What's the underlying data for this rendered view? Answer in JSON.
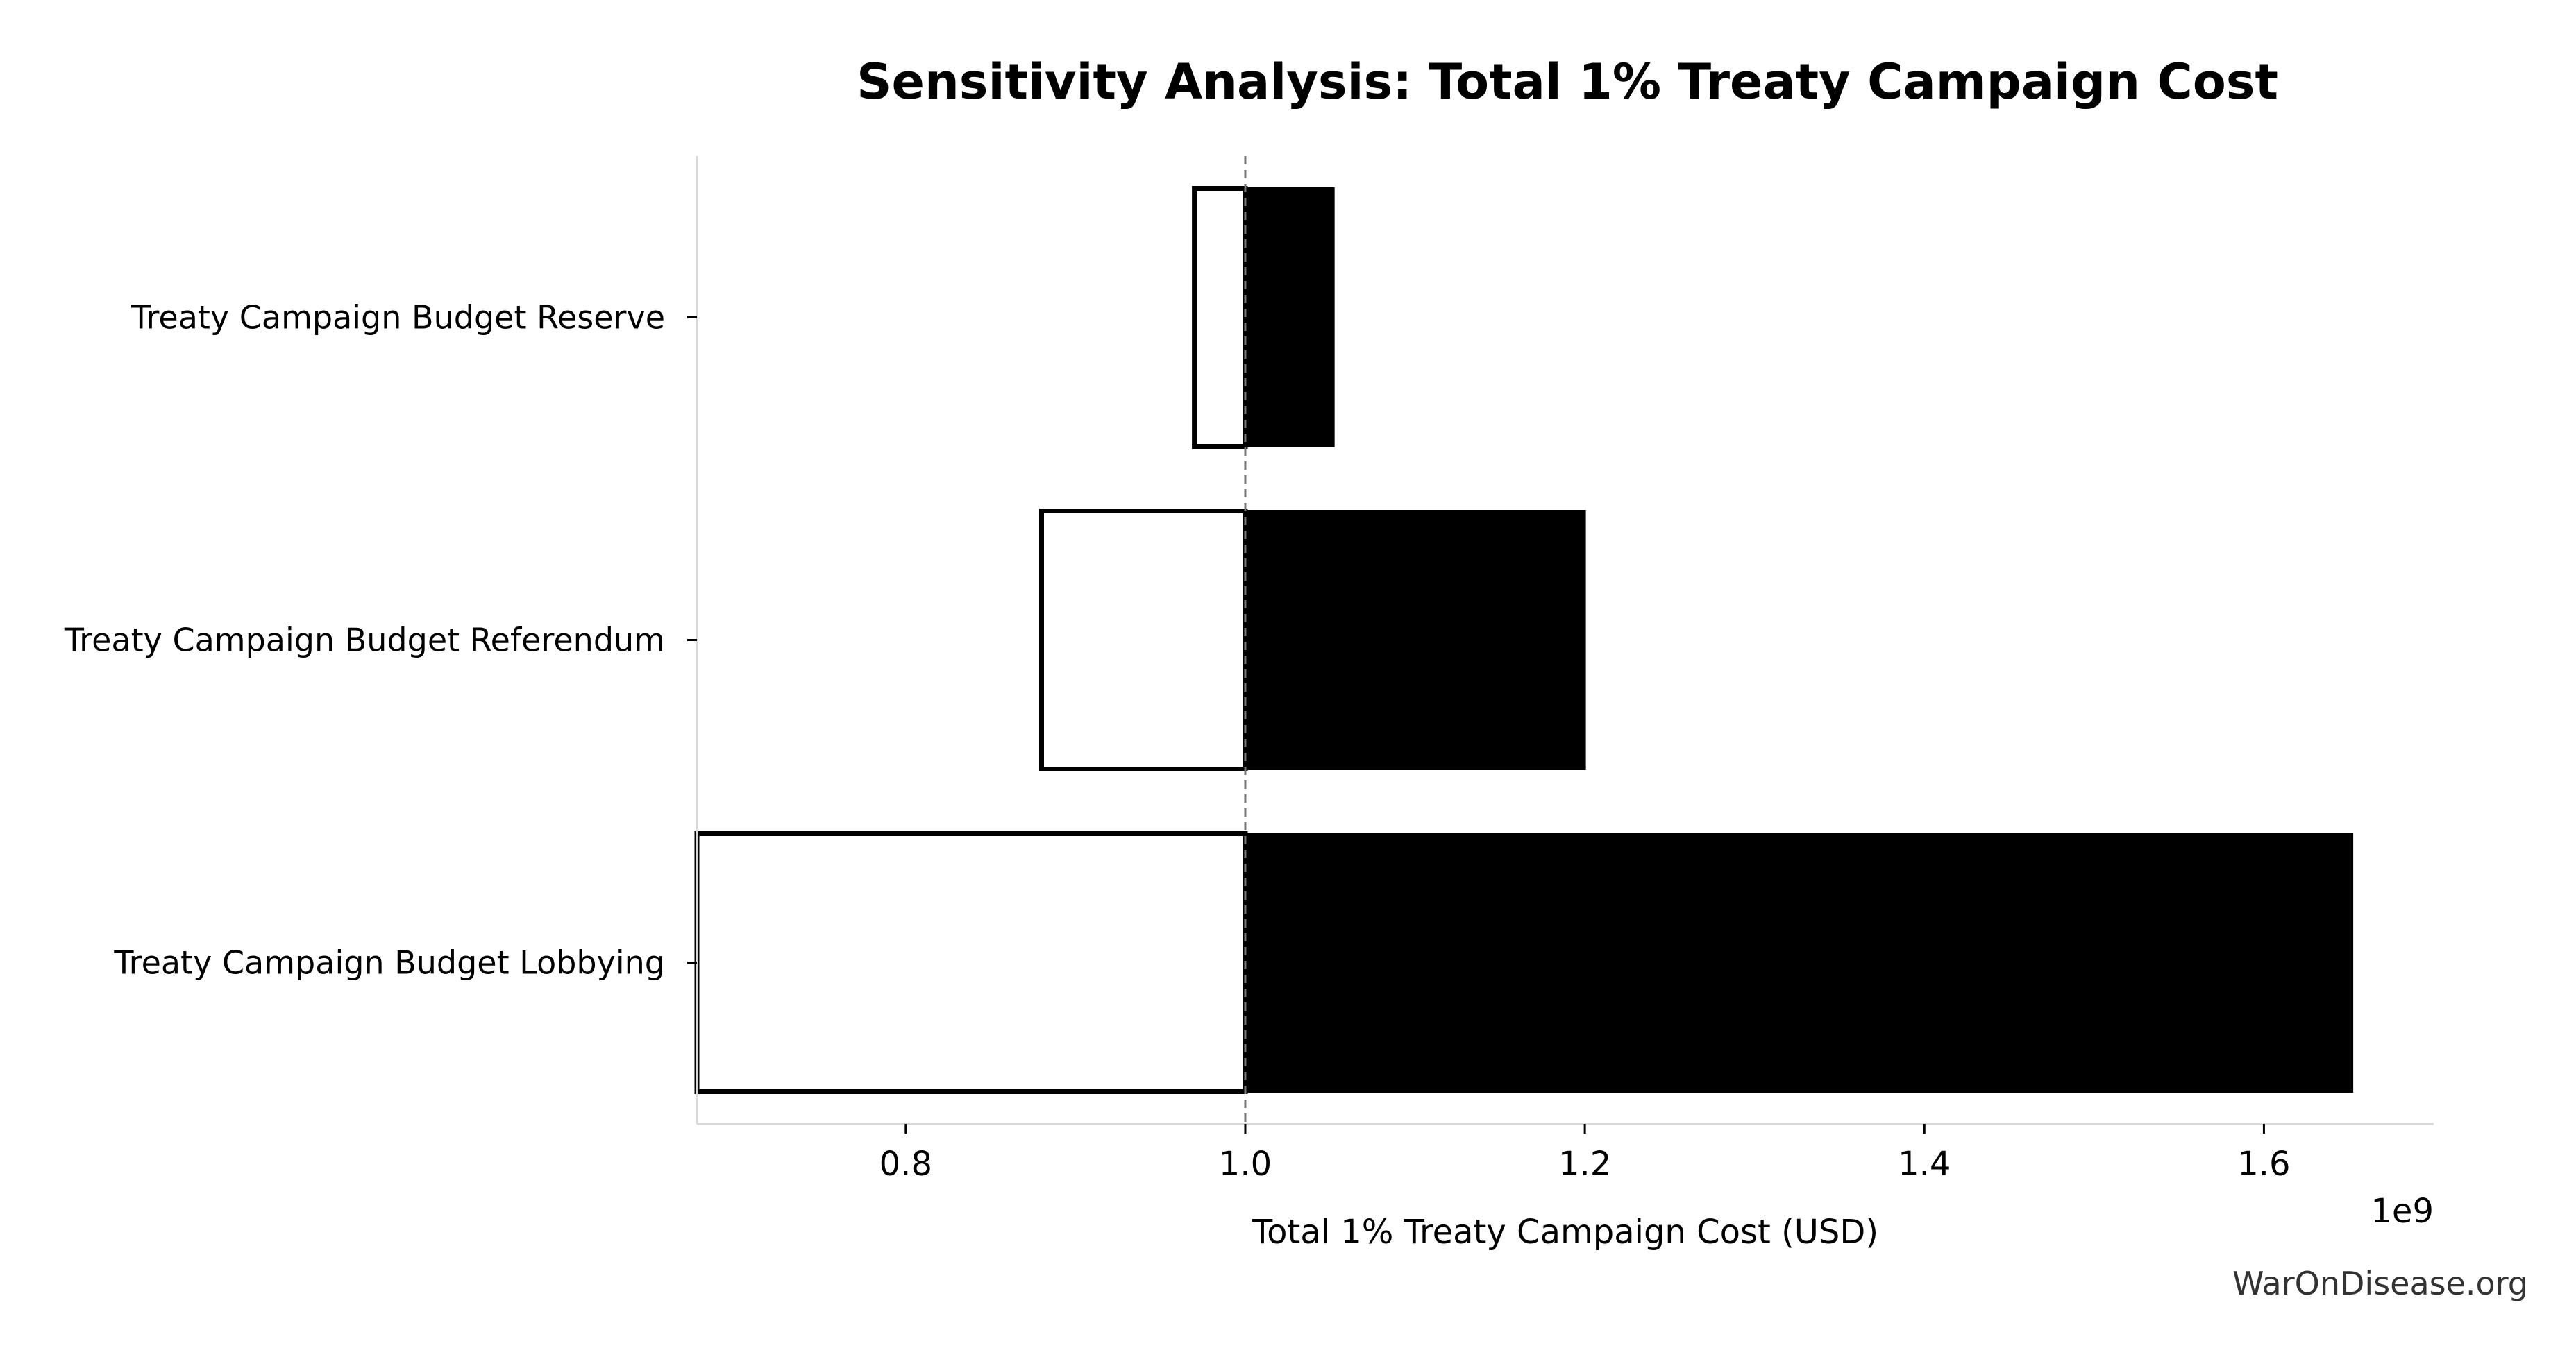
{
  "chart_data": {
    "type": "bar",
    "orientation": "horizontal",
    "subtype": "tornado",
    "title": "Sensitivity Analysis: Total 1% Treaty Campaign Cost",
    "xlabel": "Total 1% Treaty Campaign Cost (USD)",
    "ylabel": "",
    "x_offset_label": "1e9",
    "baseline": 1.0,
    "xlim": [
      0.677,
      1.7
    ],
    "xticks": [
      0.8,
      1.0,
      1.2,
      1.4,
      1.6
    ],
    "xtick_labels": [
      "0.8",
      "1.0",
      "1.2",
      "1.4",
      "1.6"
    ],
    "categories": [
      "Treaty Campaign Budget Reserve",
      "Treaty Campaign Budget Referendum",
      "Treaty Campaign Budget Lobbying"
    ],
    "low": [
      0.97,
      0.88,
      0.677
    ],
    "high": [
      1.052,
      1.2,
      1.652
    ],
    "low_color": "#ffffff",
    "high_color": "#000000",
    "grid": false,
    "legend": "none"
  },
  "watermark": "WarOnDisease.org"
}
